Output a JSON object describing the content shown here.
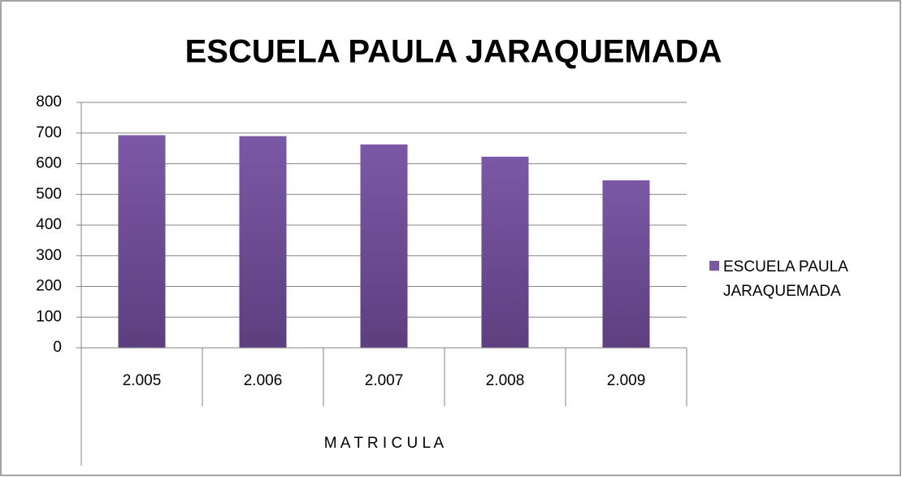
{
  "chart_data": {
    "type": "bar",
    "title": "ESCUELA PAULA JARAQUEMADA",
    "categories": [
      "2.005",
      "2.006",
      "2.007",
      "2.008",
      "2.009"
    ],
    "series": [
      {
        "name": "ESCUELA PAULA JARAQUEMADA",
        "color": "#7b58a6",
        "values": [
          693,
          690,
          663,
          623,
          546
        ]
      }
    ],
    "x_label": "M A T R I C U L A",
    "ylim": [
      0,
      800
    ],
    "yticks": [
      0,
      100,
      200,
      300,
      400,
      500,
      600,
      700,
      800
    ],
    "grid": true,
    "legend": "right"
  }
}
